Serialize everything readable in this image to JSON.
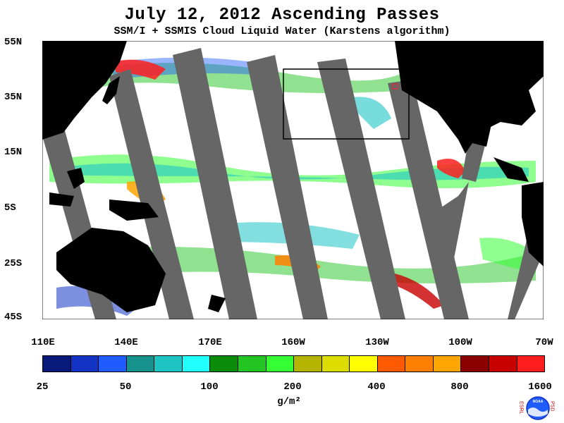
{
  "title": "July 12, 2012  Ascending Passes",
  "subtitle": "SSM/I + SSMIS Cloud Liquid Water (Karstens algorithm)",
  "lat_labels": [
    "55N",
    "35N",
    "15N",
    "5S",
    "25S",
    "45S"
  ],
  "lon_labels": [
    "110E",
    "140E",
    "170E",
    "160W",
    "130W",
    "100W",
    "70W"
  ],
  "colorbar": {
    "tick_labels": [
      "25",
      "50",
      "100",
      "200",
      "400",
      "800",
      "1600"
    ],
    "units": "g/m²",
    "colors": [
      "#0a1a7a",
      "#1233c4",
      "#1f5cff",
      "#16918c",
      "#1ec4c4",
      "#22ffff",
      "#0a8c0a",
      "#22c422",
      "#33ff33",
      "#b4b400",
      "#dcdc00",
      "#ffff00",
      "#ff5a00",
      "#ff7f00",
      "#ffa500",
      "#8c0000",
      "#c80000",
      "#ff1e1e"
    ]
  },
  "logo": {
    "letters_left": "ESRL",
    "letters_right": "PSD",
    "center": "NOAA"
  },
  "colors": {
    "land": "#000000",
    "missing_swath": "#666666",
    "ocean_clear": "#ffffff",
    "box": "#000000"
  }
}
